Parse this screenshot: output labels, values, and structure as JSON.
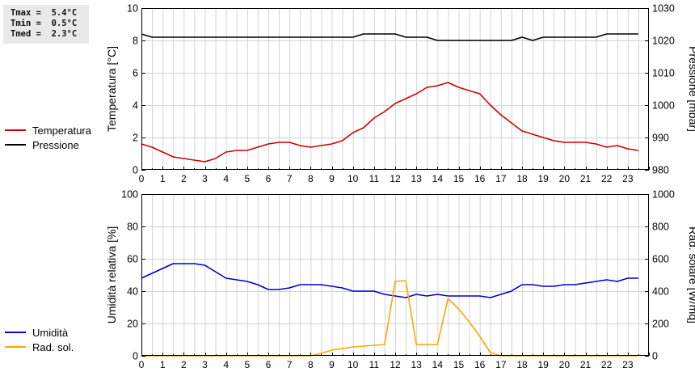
{
  "stats": {
    "tmax": "Tmax =  5.4°C",
    "tmin": "Tmin =  0.5°C",
    "tmed": "Tmed =  2.3°C"
  },
  "colors": {
    "temperatura": "#cc0000",
    "pressione": "#000000",
    "umidita": "#0000cc",
    "rad_sol": "#ffa500",
    "grid": "#d3d3d3"
  },
  "legend_top": [
    {
      "label": "Temperatura",
      "color": "#cc0000"
    },
    {
      "label": "Pressione",
      "color": "#000000"
    }
  ],
  "legend_bottom": [
    {
      "label": "Umidità",
      "color": "#0000cc"
    },
    {
      "label": "Rad. sol.",
      "color": "#ffa500"
    }
  ],
  "chart_data": [
    {
      "type": "line",
      "ylabel": "Temperatura [°C]",
      "ylabel_right": "Pressione [mbar]",
      "xlim": [
        0,
        24
      ],
      "x_ticks": [
        0,
        1,
        2,
        3,
        4,
        5,
        6,
        7,
        8,
        9,
        10,
        11,
        12,
        13,
        14,
        15,
        16,
        17,
        18,
        19,
        20,
        21,
        22,
        23
      ],
      "ylim": [
        0,
        10
      ],
      "y_ticks": [
        0,
        2,
        4,
        6,
        8,
        10
      ],
      "ylim_right": [
        980,
        1030
      ],
      "y_ticks_right": [
        980,
        990,
        1000,
        1010,
        1020,
        1030
      ],
      "grid": true,
      "series": [
        {
          "name": "Temperatura",
          "axis": "left",
          "color": "#cc0000",
          "x": [
            0,
            0.5,
            1,
            1.5,
            2,
            2.5,
            3,
            3.5,
            4,
            4.5,
            5,
            5.5,
            6,
            6.5,
            7,
            7.5,
            8,
            8.5,
            9,
            9.5,
            10,
            10.5,
            11,
            11.5,
            12,
            12.5,
            13,
            13.5,
            14,
            14.5,
            15,
            15.5,
            16,
            16.5,
            17,
            17.5,
            18,
            18.5,
            19,
            19.5,
            20,
            20.5,
            21,
            21.5,
            22,
            22.5,
            23,
            23.5
          ],
          "y": [
            1.6,
            1.4,
            1.1,
            0.8,
            0.7,
            0.6,
            0.5,
            0.7,
            1.1,
            1.2,
            1.2,
            1.4,
            1.6,
            1.7,
            1.7,
            1.5,
            1.4,
            1.5,
            1.6,
            1.8,
            2.3,
            2.6,
            3.2,
            3.6,
            4.1,
            4.4,
            4.7,
            5.1,
            5.2,
            5.4,
            5.1,
            4.9,
            4.7,
            4.0,
            3.4,
            2.9,
            2.4,
            2.2,
            2.0,
            1.8,
            1.7,
            1.7,
            1.7,
            1.6,
            1.4,
            1.5,
            1.3,
            1.2
          ]
        },
        {
          "name": "Pressione",
          "axis": "right",
          "color": "#000000",
          "x": [
            0,
            0.5,
            1,
            1.5,
            2,
            2.5,
            3,
            3.5,
            4,
            4.5,
            5,
            5.5,
            6,
            6.5,
            7,
            7.5,
            8,
            8.5,
            9,
            9.5,
            10,
            10.5,
            11,
            11.5,
            12,
            12.5,
            13,
            13.5,
            14,
            14.5,
            15,
            15.5,
            16,
            16.5,
            17,
            17.5,
            18,
            18.5,
            19,
            19.5,
            20,
            20.5,
            21,
            21.5,
            22,
            22.5,
            23,
            23.5
          ],
          "y": [
            1022,
            1021,
            1021,
            1021,
            1021,
            1021,
            1021,
            1021,
            1021,
            1021,
            1021,
            1021,
            1021,
            1021,
            1021,
            1021,
            1021,
            1021,
            1021,
            1021,
            1021,
            1022,
            1022,
            1022,
            1022,
            1021,
            1021,
            1021,
            1020,
            1020,
            1020,
            1020,
            1020,
            1020,
            1020,
            1020,
            1021,
            1020,
            1021,
            1021,
            1021,
            1021,
            1021,
            1021,
            1022,
            1022,
            1022,
            1022
          ]
        }
      ]
    },
    {
      "type": "line",
      "ylabel": "Umidità relativa [%]",
      "ylabel_right": "Rad. solare [W/mq]",
      "xlim": [
        0,
        24
      ],
      "x_ticks": [
        0,
        1,
        2,
        3,
        4,
        5,
        6,
        7,
        8,
        9,
        10,
        11,
        12,
        13,
        14,
        15,
        16,
        17,
        18,
        19,
        20,
        21,
        22,
        23
      ],
      "ylim": [
        0,
        100
      ],
      "y_ticks": [
        0,
        20,
        40,
        60,
        80,
        100
      ],
      "ylim_right": [
        0,
        1000
      ],
      "y_ticks_right": [
        0,
        200,
        400,
        600,
        800,
        1000
      ],
      "grid": true,
      "series": [
        {
          "name": "Umidità",
          "axis": "left",
          "color": "#0000cc",
          "x": [
            0,
            0.5,
            1,
            1.5,
            2,
            2.5,
            3,
            3.5,
            4,
            4.5,
            5,
            5.5,
            6,
            6.5,
            7,
            7.5,
            8,
            8.5,
            9,
            9.5,
            10,
            10.5,
            11,
            11.5,
            12,
            12.5,
            13,
            13.5,
            14,
            14.5,
            15,
            15.5,
            16,
            16.5,
            17,
            17.5,
            18,
            18.5,
            19,
            19.5,
            20,
            20.5,
            21,
            21.5,
            22,
            22.5,
            23,
            23.5
          ],
          "y": [
            48,
            51,
            54,
            57,
            57,
            57,
            56,
            52,
            48,
            47,
            46,
            44,
            41,
            41,
            42,
            44,
            44,
            44,
            43,
            42,
            40,
            40,
            40,
            38,
            37,
            36,
            38,
            37,
            38,
            37,
            37,
            37,
            37,
            36,
            38,
            40,
            44,
            44,
            43,
            43,
            44,
            44,
            45,
            46,
            47,
            46,
            48,
            48
          ]
        },
        {
          "name": "Rad. sol.",
          "axis": "right",
          "color": "#ffa500",
          "x": [
            0,
            0.5,
            1,
            1.5,
            2,
            2.5,
            3,
            3.5,
            4,
            4.5,
            5,
            5.5,
            6,
            6.5,
            7,
            7.5,
            8,
            8.5,
            9,
            9.5,
            10,
            10.5,
            11,
            11.5,
            12,
            12.5,
            13,
            13.5,
            14,
            14.5,
            15,
            15.5,
            16,
            16.5,
            17,
            17.5,
            18,
            18.5,
            19,
            19.5,
            20,
            20.5,
            21,
            21.5,
            22,
            22.5,
            23,
            23.5
          ],
          "y": [
            0,
            0,
            0,
            0,
            0,
            0,
            0,
            0,
            0,
            0,
            0,
            0,
            0,
            0,
            0,
            0,
            0,
            15,
            35,
            45,
            55,
            60,
            65,
            70,
            460,
            465,
            70,
            70,
            70,
            355,
            290,
            210,
            120,
            20,
            0,
            0,
            0,
            0,
            0,
            0,
            0,
            0,
            0,
            0,
            0,
            0,
            0,
            0
          ]
        }
      ]
    }
  ]
}
